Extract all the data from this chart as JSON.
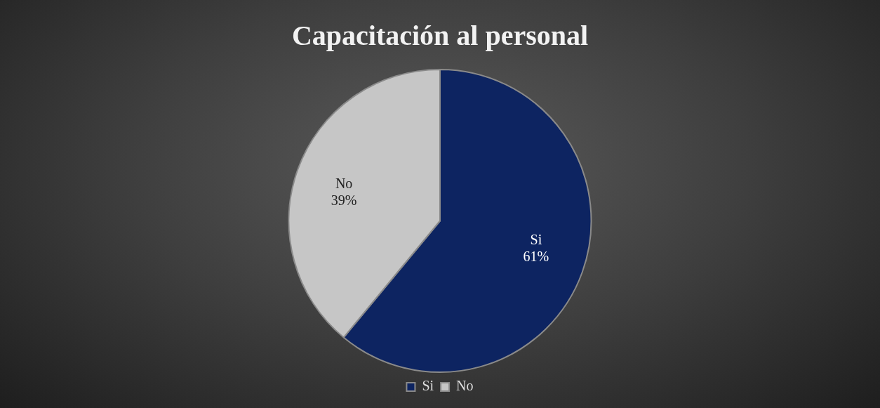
{
  "chart_data": {
    "type": "pie",
    "title": "Capacitación al personal",
    "categories": [
      "Si",
      "No"
    ],
    "values": [
      61,
      39
    ],
    "colors": [
      "#0d2461",
      "#c6c6c6"
    ],
    "value_labels": [
      "61%",
      "39%"
    ],
    "legend": "bottom"
  }
}
